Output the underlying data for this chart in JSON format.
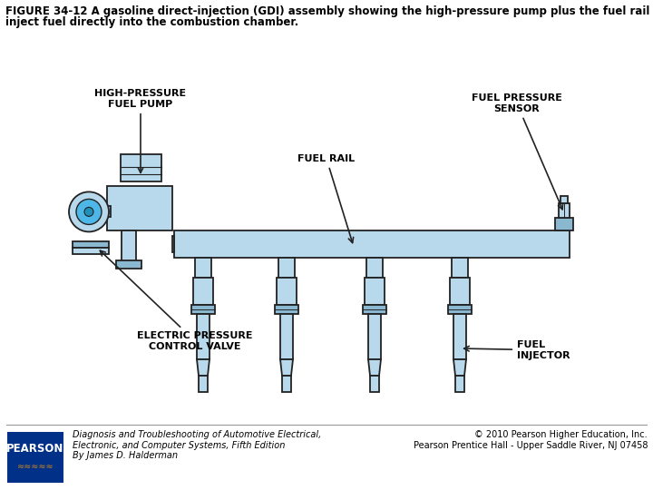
{
  "title_line1": "FIGURE 34-12 A gasoline direct-injection (GDI) assembly showing the high-pressure pump plus the fuel rail and injectors which",
  "title_line2": "inject fuel directly into the combustion chamber.",
  "title_fontsize": 8.5,
  "light_blue": "#b8d8ec",
  "mid_blue": "#8ab8d0",
  "dark_blue": "#5090a8",
  "outline_color": "#222222",
  "bg_color": "#ffffff",
  "label_color": "#000000",
  "label_fontsize": 8.0,
  "footer_left": "Diagnosis and Troubleshooting of Automotive Electrical,\nElectronic, and Computer Systems, Fifth Edition\nBy James D. Halderman",
  "footer_right": "© 2010 Pearson Higher Education, Inc.\nPearson Prentice Hall - Upper Saddle River, NJ 07458",
  "pearson_bg": "#003087",
  "pearson_text": "PEARSON",
  "footer_fontsize": 7
}
